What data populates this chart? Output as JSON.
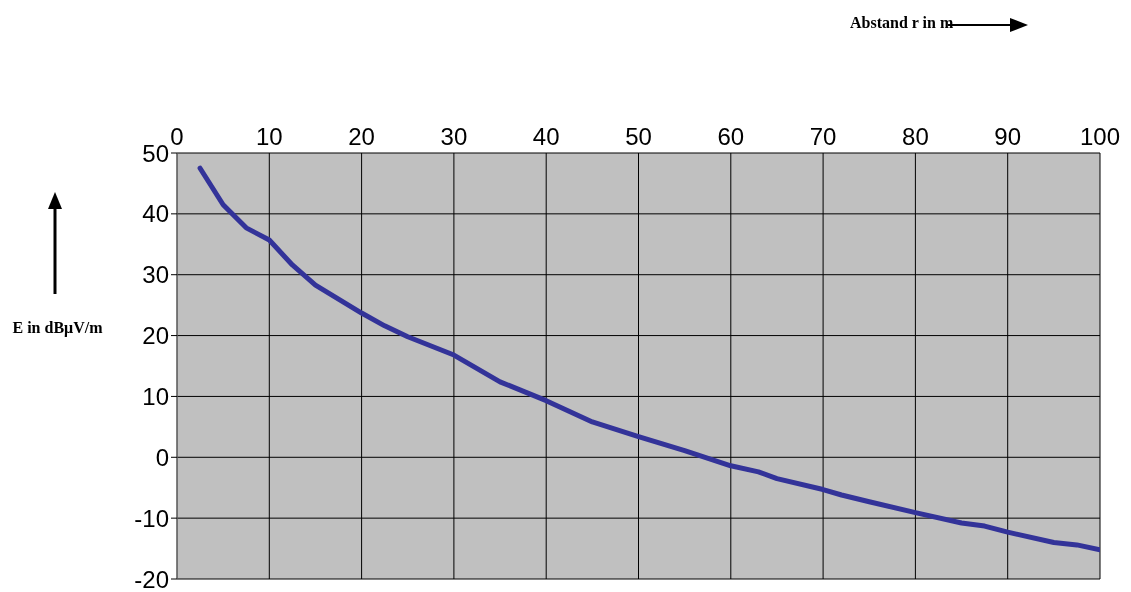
{
  "chart_data": {
    "type": "line",
    "annotations": [
      "Abstand r in m"
    ],
    "ylabel": "E in dBμV/m",
    "series": [
      {
        "color": "#333399",
        "x": [
          2.5,
          5,
          7.5,
          10,
          12.5,
          15,
          20,
          22.5,
          25,
          30,
          35,
          40,
          45,
          50,
          55,
          60,
          63,
          65,
          70,
          72,
          75,
          80,
          85,
          87.5,
          90,
          95,
          97.5,
          100
        ],
        "values": [
          47.5,
          41.5,
          37.7,
          35.7,
          31.6,
          28.3,
          23.7,
          21.6,
          19.8,
          16.8,
          12.4,
          9.3,
          5.8,
          3.4,
          1.1,
          -1.4,
          -2.4,
          -3.5,
          -5.3,
          -6.2,
          -7.3,
          -9.1,
          -10.8,
          -11.3,
          -12.3,
          -14.0,
          -14.4,
          -15.2
        ]
      }
    ],
    "xlim": [
      0,
      100
    ],
    "xticks": [
      0,
      10,
      20,
      30,
      40,
      50,
      60,
      70,
      80,
      90,
      100
    ],
    "ylim": [
      -20,
      50
    ],
    "yticks": [
      -20,
      -10,
      0,
      10,
      20,
      30,
      40,
      50
    ],
    "grid": true,
    "legend": false,
    "marker": "none",
    "line_style": "solid"
  }
}
